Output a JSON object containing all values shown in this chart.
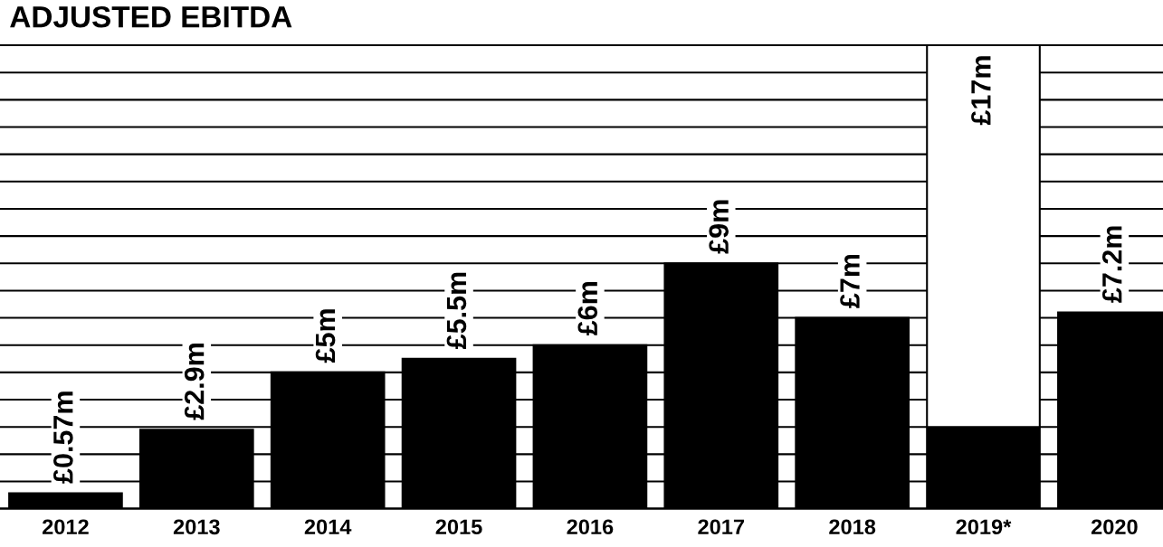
{
  "chart_data": {
    "type": "bar",
    "title": "ADJUSTED EBITDA",
    "stacked": true,
    "categories": [
      "2012",
      "2013",
      "2014",
      "2015",
      "2016",
      "2017",
      "2018",
      "2019*",
      "2020"
    ],
    "series": [
      {
        "color": "#000000",
        "values": [
          0.57,
          2.9,
          5,
          5.5,
          6,
          9,
          7,
          3,
          7.2
        ],
        "value_labels": [
          "£0.57m",
          "£2.9m",
          "£5m",
          "£5.5m",
          "£6m",
          "£9m",
          "£7m",
          null,
          "£7.2m"
        ]
      },
      {
        "color": "#ffffff",
        "values": [
          null,
          null,
          null,
          null,
          null,
          null,
          null,
          14,
          null
        ]
      }
    ],
    "totals": [
      null,
      null,
      null,
      null,
      null,
      null,
      null,
      "£17m",
      null
    ],
    "tick_labels": "x",
    "grid": "y",
    "legend": false
  }
}
